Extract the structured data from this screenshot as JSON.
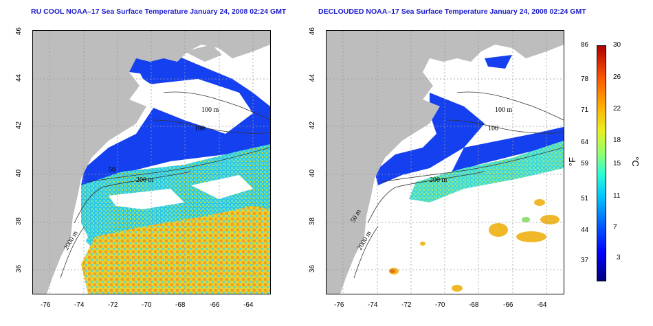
{
  "left_panel": {
    "title": "RU COOL NOAA–17 Sea Surface Temperature January 24, 2008 02:24 GMT",
    "contours": {
      "c100": "100 m",
      "c100b": "100",
      "c200": "200 m",
      "c2000": "2000 m",
      "c50": "50"
    }
  },
  "right_panel": {
    "title": "DECLOUDED NOAA–17 Sea Surface Temperature January 24, 2008 02:24 GMT",
    "contours": {
      "c100": "100 m",
      "c100b": "100",
      "c200": "200 m",
      "c2000": "2000 m",
      "c50": "50 m"
    }
  },
  "axes": {
    "x_ticks": [
      "-76",
      "-74",
      "-72",
      "-70",
      "-68",
      "-66",
      "-64"
    ],
    "y_ticks": [
      "36",
      "38",
      "40",
      "42",
      "44",
      "46"
    ]
  },
  "colorbar": {
    "fahrenheit_ticks": [
      "86",
      "78",
      "71",
      "64",
      "59",
      "51",
      "44",
      "37"
    ],
    "celsius_ticks": [
      "30",
      "26",
      "22",
      "18",
      "15",
      "11",
      "7",
      "3"
    ],
    "left_unit": "°F",
    "right_unit": "°C",
    "min_c": 0,
    "max_c": 30,
    "colors": [
      "#00007f",
      "#0000ff",
      "#0060ff",
      "#00c8ff",
      "#30ffd0",
      "#90ff70",
      "#e8f020",
      "#ffb000",
      "#ff5a00",
      "#b00000"
    ]
  },
  "map_extent": {
    "lon": [
      -77,
      -63
    ],
    "lat": [
      35,
      46
    ]
  },
  "colors": {
    "land": "#bdbdbd",
    "title": "#1a1acc",
    "cold": "#1133ee",
    "mid": "#33d0e0",
    "warm": "#f0b030"
  }
}
